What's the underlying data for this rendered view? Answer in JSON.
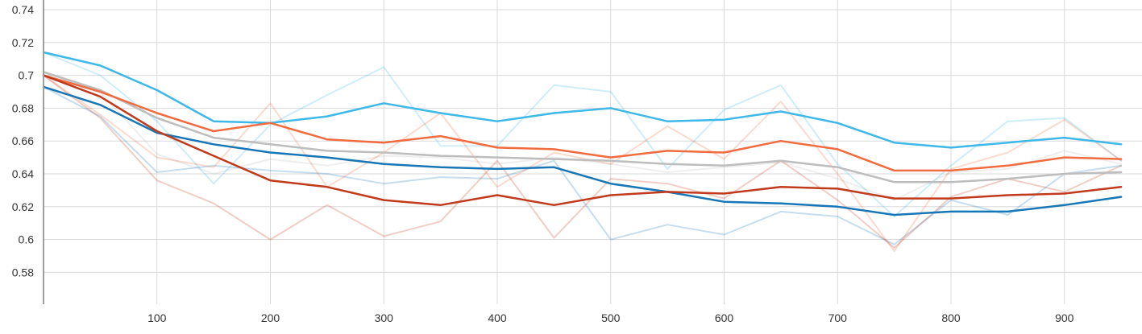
{
  "chart_data": {
    "type": "line",
    "title": "",
    "xlabel": "",
    "ylabel": "",
    "xlim": [
      0,
      960
    ],
    "ylim": [
      0.56,
      0.74
    ],
    "x_ticks": [
      100,
      200,
      300,
      400,
      500,
      600,
      700,
      800,
      900
    ],
    "y_ticks": [
      0.58,
      0.6,
      0.62,
      0.64,
      0.66,
      0.68,
      0.7,
      0.72,
      0.74
    ],
    "x_tick_labels": [
      "100",
      "200",
      "300",
      "400",
      "500",
      "600",
      "700",
      "800",
      "900"
    ],
    "y_tick_labels": [
      "0.58",
      "0.6",
      "0.62",
      "0.64",
      "0.66",
      "0.68",
      "0.7",
      "0.72",
      "0.74"
    ],
    "grid": true,
    "legend": "none",
    "x": [
      0,
      50,
      100,
      150,
      200,
      250,
      300,
      350,
      400,
      450,
      500,
      550,
      600,
      650,
      700,
      750,
      800,
      850,
      900,
      950
    ],
    "series": [
      {
        "color": "#bdbdbd",
        "raw": [
          0.702,
          0.69,
          0.652,
          0.64,
          0.649,
          0.645,
          0.651,
          0.65,
          0.646,
          0.65,
          0.646,
          0.641,
          0.644,
          0.647,
          0.637,
          0.624,
          0.641,
          0.643,
          0.654,
          0.646
        ],
        "smoothed": [
          0.702,
          0.691,
          0.674,
          0.662,
          0.658,
          0.654,
          0.653,
          0.651,
          0.65,
          0.649,
          0.648,
          0.646,
          0.645,
          0.648,
          0.644,
          0.635,
          0.635,
          0.637,
          0.64,
          0.641
        ]
      },
      {
        "color": "#1776b6",
        "raw": [
          0.693,
          0.675,
          0.641,
          0.645,
          0.642,
          0.64,
          0.634,
          0.638,
          0.637,
          0.648,
          0.6,
          0.609,
          0.603,
          0.617,
          0.614,
          0.597,
          0.624,
          0.615,
          0.64,
          0.645
        ],
        "smoothed": [
          0.693,
          0.682,
          0.665,
          0.658,
          0.653,
          0.65,
          0.646,
          0.644,
          0.643,
          0.644,
          0.634,
          0.629,
          0.623,
          0.622,
          0.62,
          0.615,
          0.617,
          0.617,
          0.621,
          0.626
        ]
      },
      {
        "color": "#3db8e8",
        "raw": [
          0.714,
          0.7,
          0.672,
          0.634,
          0.67,
          0.688,
          0.705,
          0.657,
          0.657,
          0.694,
          0.69,
          0.643,
          0.679,
          0.694,
          0.646,
          0.614,
          0.645,
          0.672,
          0.674,
          0.648
        ],
        "smoothed": [
          0.714,
          0.706,
          0.691,
          0.672,
          0.671,
          0.675,
          0.683,
          0.677,
          0.672,
          0.677,
          0.68,
          0.672,
          0.673,
          0.678,
          0.671,
          0.659,
          0.656,
          0.659,
          0.662,
          0.658
        ]
      },
      {
        "color": "#f06c3e",
        "raw": [
          0.7,
          0.676,
          0.65,
          0.644,
          0.683,
          0.632,
          0.653,
          0.677,
          0.632,
          0.653,
          0.646,
          0.669,
          0.649,
          0.684,
          0.64,
          0.593,
          0.643,
          0.653,
          0.673,
          0.648
        ],
        "smoothed": [
          0.7,
          0.69,
          0.677,
          0.666,
          0.671,
          0.661,
          0.659,
          0.663,
          0.656,
          0.655,
          0.65,
          0.654,
          0.653,
          0.66,
          0.655,
          0.642,
          0.642,
          0.645,
          0.65,
          0.649
        ]
      },
      {
        "color": "#c03a1c",
        "raw": [
          0.7,
          0.674,
          0.636,
          0.622,
          0.6,
          0.621,
          0.602,
          0.611,
          0.648,
          0.601,
          0.637,
          0.634,
          0.625,
          0.648,
          0.624,
          0.595,
          0.626,
          0.637,
          0.629,
          0.645
        ],
        "smoothed": [
          0.7,
          0.687,
          0.666,
          0.651,
          0.636,
          0.632,
          0.624,
          0.621,
          0.627,
          0.621,
          0.627,
          0.629,
          0.628,
          0.632,
          0.631,
          0.625,
          0.625,
          0.627,
          0.628,
          0.632
        ]
      }
    ]
  }
}
